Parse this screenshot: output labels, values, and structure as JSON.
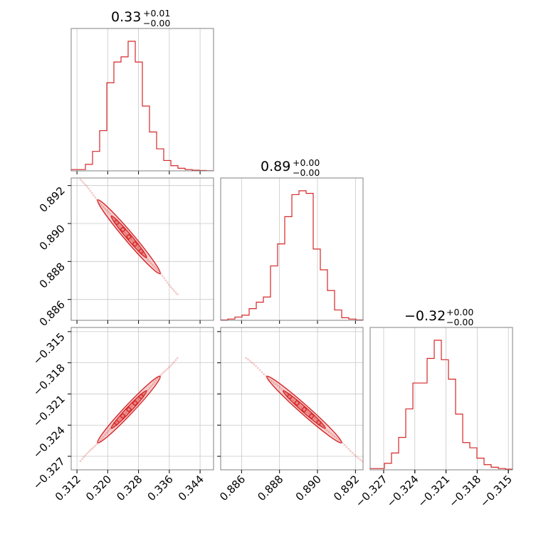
{
  "chart_data": {
    "type": "corner",
    "color": "#d62728",
    "grid": true,
    "params": [
      {
        "name": "p0",
        "range": [
          0.3105,
          0.3475
        ],
        "ticks": [
          "0.312",
          "0.320",
          "0.328",
          "0.336",
          "0.344"
        ],
        "tick_values": [
          0.312,
          0.32,
          0.328,
          0.336,
          0.344
        ],
        "title": {
          "value": "0.33",
          "plus": "+0.01",
          "minus": "−0.00"
        }
      },
      {
        "name": "p1",
        "range": [
          0.8849,
          0.8924
        ],
        "ticks": [
          "0.886",
          "0.888",
          "0.890",
          "0.892"
        ],
        "tick_values": [
          0.886,
          0.888,
          0.89,
          0.892
        ],
        "title": {
          "value": "0.89",
          "plus": "+0.00",
          "minus": "−0.00"
        }
      },
      {
        "name": "p2",
        "range": [
          -0.3283,
          -0.3146
        ],
        "ticks": [
          "−0.327",
          "−0.324",
          "−0.321",
          "−0.318",
          "−0.315"
        ],
        "tick_values": [
          -0.327,
          -0.324,
          -0.321,
          -0.318,
          -0.315
        ],
        "title": {
          "value": "−0.32",
          "plus": "+0.00",
          "minus": "−0.00"
        }
      }
    ],
    "histograms": [
      {
        "edges_range": [
          0.3105,
          0.3475
        ],
        "bins": 20,
        "counts": [
          1,
          1,
          5,
          15,
          31,
          68,
          84,
          88,
          100,
          84,
          50,
          30,
          17,
          8,
          4,
          2,
          1,
          0.5,
          0.3,
          0.1
        ]
      },
      {
        "edges_range": [
          0.8849,
          0.8924
        ],
        "bins": 20,
        "counts": [
          0.3,
          1,
          2.5,
          4,
          9,
          14,
          18,
          42,
          59,
          80,
          97,
          100,
          98,
          55,
          39,
          23,
          8,
          2,
          1,
          0.3
        ]
      },
      {
        "edges_range": [
          -0.3283,
          -0.3146
        ],
        "bins": 20,
        "counts": [
          1,
          1,
          5,
          13,
          25,
          47,
          67,
          67,
          86,
          100,
          85,
          70,
          43,
          21,
          17,
          9,
          4,
          2,
          1,
          0.5
        ]
      }
    ],
    "titles_format": "value with plus/minus superscript-subscript"
  }
}
